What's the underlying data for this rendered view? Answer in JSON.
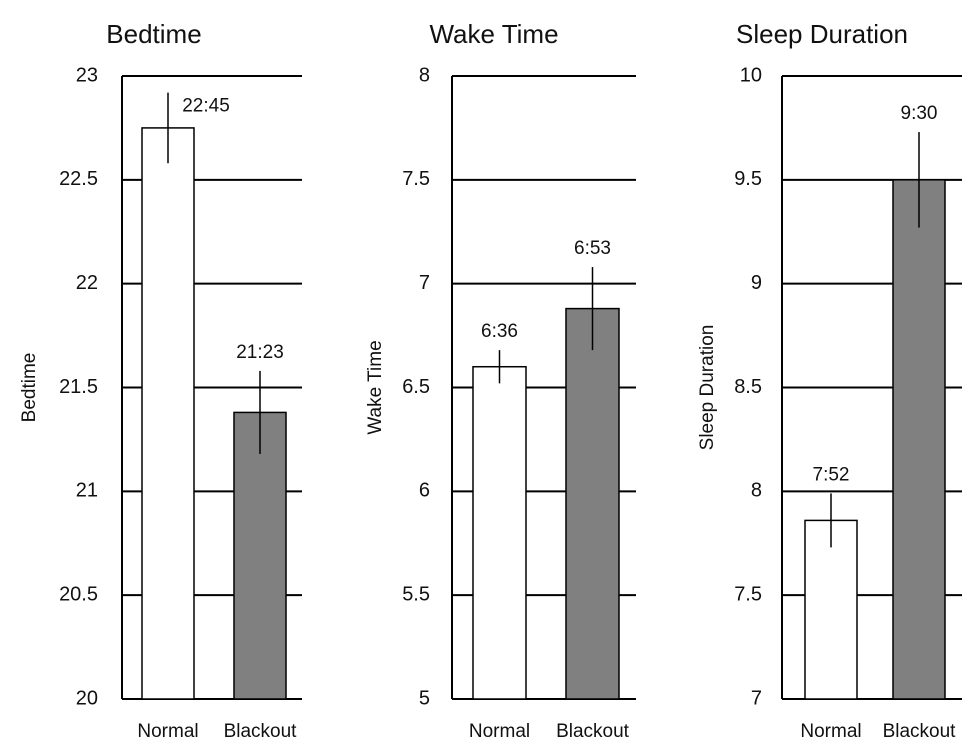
{
  "chart_data": [
    {
      "type": "bar",
      "title": "Bedtime",
      "ylabel": "Bedtime",
      "xlabel": "",
      "categories": [
        "Normal",
        "Blackout"
      ],
      "values": [
        22.75,
        21.38
      ],
      "error": [
        0.17,
        0.2
      ],
      "data_labels": [
        "22:45",
        "21:23"
      ],
      "ylim": [
        20,
        23
      ],
      "yticks": [
        "20",
        "20.5",
        "21",
        "21.5",
        "22",
        "22.5",
        "23"
      ],
      "colors": [
        "#ffffff",
        "#808080"
      ],
      "grid": true
    },
    {
      "type": "bar",
      "title": "Wake Time",
      "ylabel": "Wake Time",
      "xlabel": "",
      "categories": [
        "Normal",
        "Blackout"
      ],
      "values": [
        6.6,
        6.88
      ],
      "error": [
        0.08,
        0.2
      ],
      "data_labels": [
        "6:36",
        "6:53"
      ],
      "ylim": [
        5,
        8
      ],
      "yticks": [
        "5",
        "5.5",
        "6",
        "6.5",
        "7",
        "7.5",
        "8"
      ],
      "colors": [
        "#ffffff",
        "#808080"
      ],
      "grid": true
    },
    {
      "type": "bar",
      "title": "Sleep Duration",
      "ylabel": "Sleep Duration",
      "xlabel": "",
      "categories": [
        "Normal",
        "Blackout"
      ],
      "values": [
        7.86,
        9.5
      ],
      "error": [
        0.13,
        0.23
      ],
      "data_labels": [
        "7:52",
        "9:30"
      ],
      "ylim": [
        7,
        10
      ],
      "yticks": [
        "7",
        "7.5",
        "8",
        "8.5",
        "9",
        "9.5",
        "10"
      ],
      "colors": [
        "#ffffff",
        "#808080"
      ],
      "grid": true
    }
  ]
}
